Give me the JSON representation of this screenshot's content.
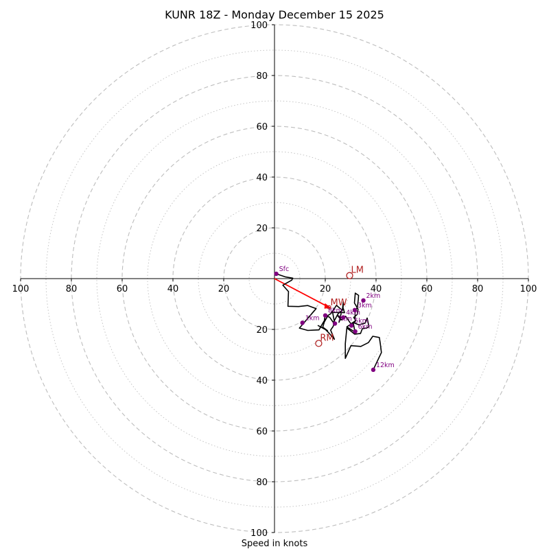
{
  "chart_data": {
    "type": "hodograph",
    "title": "KUNR 18Z - Monday December 15 2025",
    "xlabel": "Speed in knots",
    "range": [
      -100,
      100
    ],
    "ring_step_major": 20,
    "ring_step_minor": 10,
    "x_tick_labels": [
      "100",
      "80",
      "60",
      "40",
      "20",
      "20",
      "40",
      "60",
      "80",
      "100"
    ],
    "x_tick_values": [
      -100,
      -80,
      -60,
      -40,
      -20,
      20,
      40,
      60,
      80,
      100
    ],
    "y_tick_labels": [
      "100",
      "80",
      "60",
      "40",
      "20",
      "20",
      "40",
      "60",
      "80",
      "100"
    ],
    "y_tick_values": [
      100,
      80,
      60,
      40,
      20,
      -20,
      -40,
      -60,
      -80,
      -100
    ],
    "profile": [
      [
        0.7,
        1.9
      ],
      [
        4.2,
        0.7
      ],
      [
        7.2,
        0.2
      ],
      [
        6.8,
        -0.6
      ],
      [
        5.2,
        -1.5
      ],
      [
        3.3,
        -2.6
      ],
      [
        5.5,
        -5.1
      ],
      [
        5.3,
        -10.9
      ],
      [
        9.5,
        -11
      ],
      [
        13.1,
        -10.6
      ],
      [
        16.4,
        -11.8
      ],
      [
        9.8,
        -19.5
      ],
      [
        13.1,
        -20.4
      ],
      [
        15.3,
        -20.3
      ],
      [
        17.5,
        -20.2
      ],
      [
        20,
        -15.9
      ],
      [
        19,
        -19.1
      ],
      [
        20.9,
        -20.5
      ],
      [
        17.2,
        -18.5
      ],
      [
        19.9,
        -19.9
      ],
      [
        21.5,
        -21.5
      ],
      [
        23.6,
        -23.9
      ],
      [
        22.1,
        -20.3
      ],
      [
        23.1,
        -18.8
      ],
      [
        23.6,
        -17.1
      ],
      [
        22.9,
        -13.3
      ],
      [
        27.6,
        -13.4
      ],
      [
        27,
        -11.6
      ],
      [
        27.1,
        -9.1
      ],
      [
        26.7,
        -12.5
      ],
      [
        24.4,
        -10.5
      ],
      [
        22.2,
        -13.8
      ],
      [
        21.1,
        -14.5
      ],
      [
        19.6,
        -17.1
      ],
      [
        19.9,
        -14.5
      ],
      [
        21.7,
        -15.2
      ],
      [
        23.2,
        -17.3
      ],
      [
        25,
        -13.9
      ],
      [
        26.5,
        -12.5
      ],
      [
        25.4,
        -17.2
      ],
      [
        26.2,
        -15.2
      ],
      [
        24.7,
        -14.4
      ],
      [
        26.3,
        -16.3
      ],
      [
        28,
        -14.8
      ],
      [
        30.1,
        -17.8
      ],
      [
        32,
        -16.5
      ],
      [
        31.2,
        -15.3
      ],
      [
        32.6,
        -14.1
      ],
      [
        32.9,
        -12
      ],
      [
        31.5,
        -9.6
      ],
      [
        31.8,
        -5.7
      ],
      [
        33.1,
        -6.6
      ],
      [
        33,
        -8.2
      ],
      [
        32.7,
        -10.8
      ],
      [
        31.7,
        -13.5
      ],
      [
        31.8,
        -16.8
      ],
      [
        28.5,
        -19
      ],
      [
        31.7,
        -21.1
      ],
      [
        31,
        -17.3
      ],
      [
        33.2,
        -18.2
      ],
      [
        35.7,
        -17.5
      ],
      [
        36.5,
        -15.5
      ],
      [
        37.2,
        -18.9
      ],
      [
        36.3,
        -19.5
      ],
      [
        34.6,
        -19.7
      ],
      [
        33.9,
        -21.6
      ],
      [
        31.6,
        -21.9
      ],
      [
        28.5,
        -19.4
      ],
      [
        27.9,
        -25.6
      ],
      [
        27.9,
        -31.4
      ],
      [
        30.1,
        -26.4
      ],
      [
        34,
        -26.7
      ],
      [
        37,
        -25.2
      ],
      [
        38.7,
        -22.7
      ],
      [
        41.3,
        -23.2
      ],
      [
        41.7,
        -25.9
      ],
      [
        42.1,
        -29.1
      ],
      [
        38.9,
        -35.9
      ]
    ],
    "heights": [
      {
        "label": "Sfc",
        "u": 0.7,
        "v": 1.9
      },
      {
        "label": "1km",
        "u": 11,
        "v": -17.4
      },
      {
        "label": "2km",
        "u": 35,
        "v": -8.6
      },
      {
        "label": "3km",
        "u": 31.6,
        "v": -12.4
      },
      {
        "label": "4km",
        "u": 27.1,
        "v": -15.3
      },
      {
        "label": "5km",
        "u": 30.3,
        "v": -18.5
      },
      {
        "label": "6km",
        "u": 31.8,
        "v": -20.8
      },
      {
        "label": "7km",
        "u": 23.8,
        "v": -17.7
      },
      {
        "label": "8km",
        "u": 20,
        "v": -14.5
      },
      {
        "label": "12km",
        "u": 38.9,
        "v": -35.9
      }
    ],
    "storm_motion": {
      "mean_wind": {
        "label": "MW",
        "u": 21.5,
        "v": -11.3
      },
      "left_mover": {
        "label": "LM",
        "u": 29.6,
        "v": 1.2
      },
      "right_mover": {
        "label": "RM",
        "u": 17.4,
        "v": -25.5
      }
    },
    "colors": {
      "profile": "#000000",
      "height_marker": "#800080",
      "storm_marker": "#b22222",
      "bunkers_vector": "#ff0000",
      "rings": "#bdbdbd",
      "axes": "#000000"
    }
  }
}
